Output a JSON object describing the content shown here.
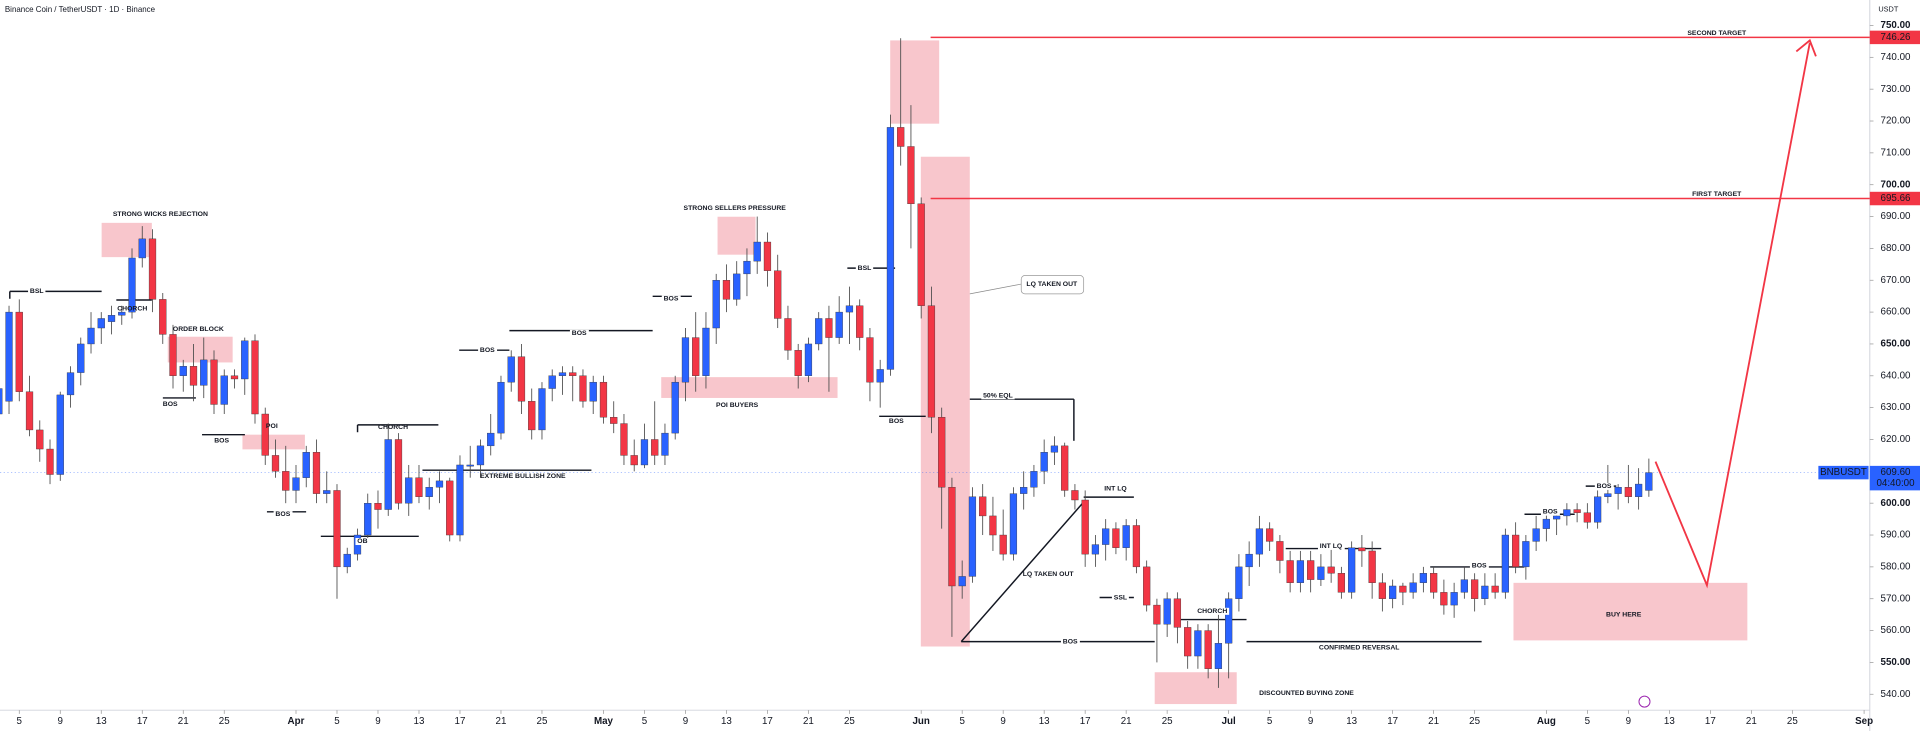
{
  "chart_data": {
    "type": "candlestick",
    "title": "Binance Coin / TetherUSDT · 1D · Binance",
    "currency": "USDT",
    "up_color": "#2962ff",
    "down_color": "#f23645",
    "ylim": [
      535,
      758
    ],
    "yticks": [
      {
        "value": 540,
        "label": "540.00"
      },
      {
        "value": 550,
        "label": "550.00"
      },
      {
        "value": 560,
        "label": "560.00"
      },
      {
        "value": 570,
        "label": "570.00"
      },
      {
        "value": 580,
        "label": "580.00"
      },
      {
        "value": 590,
        "label": "590.00"
      },
      {
        "value": 600,
        "label": "600.00"
      },
      {
        "value": 610,
        "label": "610.00"
      },
      {
        "value": 620,
        "label": "620.00"
      },
      {
        "value": 630,
        "label": "630.00"
      },
      {
        "value": 640,
        "label": "640.00"
      },
      {
        "value": 650,
        "label": "650.00"
      },
      {
        "value": 660,
        "label": "660.00"
      },
      {
        "value": 670,
        "label": "670.00"
      },
      {
        "value": 680,
        "label": "680.00"
      },
      {
        "value": 690,
        "label": "690.00"
      },
      {
        "value": 700,
        "label": "700.00"
      },
      {
        "value": 710,
        "label": "710.00"
      },
      {
        "value": 720,
        "label": "720.00"
      },
      {
        "value": 730,
        "label": "730.00"
      },
      {
        "value": 740,
        "label": "740.00"
      },
      {
        "value": 750,
        "label": "750.00"
      }
    ],
    "xticks": [
      {
        "value": "03-05",
        "label": "5"
      },
      {
        "value": "03-09",
        "label": "9"
      },
      {
        "value": "03-13",
        "label": "13"
      },
      {
        "value": "03-17",
        "label": "17"
      },
      {
        "value": "03-21",
        "label": "21"
      },
      {
        "value": "03-25",
        "label": "25"
      },
      {
        "value": "04-01",
        "label": "Apr"
      },
      {
        "value": "04-05",
        "label": "5"
      },
      {
        "value": "04-09",
        "label": "9"
      },
      {
        "value": "04-13",
        "label": "13"
      },
      {
        "value": "04-17",
        "label": "17"
      },
      {
        "value": "04-21",
        "label": "21"
      },
      {
        "value": "04-25",
        "label": "25"
      },
      {
        "value": "05-01",
        "label": "May"
      },
      {
        "value": "05-05",
        "label": "5"
      },
      {
        "value": "05-09",
        "label": "9"
      },
      {
        "value": "05-13",
        "label": "13"
      },
      {
        "value": "05-17",
        "label": "17"
      },
      {
        "value": "05-21",
        "label": "21"
      },
      {
        "value": "05-25",
        "label": "25"
      },
      {
        "value": "06-01",
        "label": "Jun"
      },
      {
        "value": "06-05",
        "label": "5"
      },
      {
        "value": "06-09",
        "label": "9"
      },
      {
        "value": "06-13",
        "label": "13"
      },
      {
        "value": "06-17",
        "label": "17"
      },
      {
        "value": "06-21",
        "label": "21"
      },
      {
        "value": "06-25",
        "label": "25"
      },
      {
        "value": "07-01",
        "label": "Jul"
      },
      {
        "value": "07-05",
        "label": "5"
      },
      {
        "value": "07-09",
        "label": "9"
      },
      {
        "value": "07-13",
        "label": "13"
      },
      {
        "value": "07-17",
        "label": "17"
      },
      {
        "value": "07-21",
        "label": "21"
      },
      {
        "value": "07-25",
        "label": "25"
      },
      {
        "value": "08-01",
        "label": "Aug"
      },
      {
        "value": "08-05",
        "label": "5"
      },
      {
        "value": "08-09",
        "label": "9"
      },
      {
        "value": "08-13",
        "label": "13"
      },
      {
        "value": "08-17",
        "label": "17"
      },
      {
        "value": "08-21",
        "label": "21"
      },
      {
        "value": "08-25",
        "label": "25"
      },
      {
        "value": "09-01",
        "label": "Sep"
      }
    ],
    "x": [
      "03-03",
      "03-04",
      "03-05",
      "03-06",
      "03-07",
      "03-08",
      "03-09",
      "03-10",
      "03-11",
      "03-12",
      "03-13",
      "03-14",
      "03-15",
      "03-16",
      "03-17",
      "03-18",
      "03-19",
      "03-20",
      "03-21",
      "03-22",
      "03-23",
      "03-24",
      "03-25",
      "03-26",
      "03-27",
      "03-28",
      "03-29",
      "03-30",
      "03-31",
      "04-01",
      "04-02",
      "04-03",
      "04-04",
      "04-05",
      "04-06",
      "04-07",
      "04-08",
      "04-09",
      "04-10",
      "04-11",
      "04-12",
      "04-13",
      "04-14",
      "04-15",
      "04-16",
      "04-17",
      "04-18",
      "04-19",
      "04-20",
      "04-21",
      "04-22",
      "04-23",
      "04-24",
      "04-25",
      "04-26",
      "04-27",
      "04-28",
      "04-29",
      "04-30",
      "05-01",
      "05-02",
      "05-03",
      "05-04",
      "05-05",
      "05-06",
      "05-07",
      "05-08",
      "05-09",
      "05-10",
      "05-11",
      "05-12",
      "05-13",
      "05-14",
      "05-15",
      "05-16",
      "05-17",
      "05-18",
      "05-19",
      "05-20",
      "05-21",
      "05-22",
      "05-23",
      "05-24",
      "05-25",
      "05-26",
      "05-27",
      "05-28",
      "05-29",
      "05-30",
      "05-31",
      "06-01",
      "06-02",
      "06-03",
      "06-04",
      "06-05",
      "06-06",
      "06-07",
      "06-08",
      "06-09",
      "06-10",
      "06-11",
      "06-12",
      "06-13",
      "06-14",
      "06-15",
      "06-16",
      "06-17",
      "06-18",
      "06-19",
      "06-20",
      "06-21",
      "06-22",
      "06-23",
      "06-24",
      "06-25",
      "06-26",
      "06-27",
      "06-28",
      "06-29",
      "06-30",
      "07-01",
      "07-02",
      "07-03",
      "07-04",
      "07-05",
      "07-06",
      "07-07",
      "07-08",
      "07-09",
      "07-10",
      "07-11",
      "07-12",
      "07-13",
      "07-14",
      "07-15",
      "07-16",
      "07-17",
      "07-18",
      "07-19",
      "07-20",
      "07-21",
      "07-22",
      "07-23",
      "07-24",
      "07-25",
      "07-26",
      "07-27",
      "07-28",
      "07-29",
      "07-30",
      "07-31",
      "08-01",
      "08-02",
      "08-03",
      "08-04",
      "08-05",
      "08-06",
      "08-07",
      "08-08",
      "08-09",
      "08-10",
      "08-11"
    ],
    "ohlc": [
      [
        628,
        642,
        625,
        636
      ],
      [
        632,
        662,
        628,
        660
      ],
      [
        660,
        664,
        632,
        635
      ],
      [
        635,
        640,
        621,
        623
      ],
      [
        623,
        626,
        613,
        617
      ],
      [
        617,
        620,
        606,
        609
      ],
      [
        609,
        635,
        607,
        634
      ],
      [
        634,
        643,
        630,
        641
      ],
      [
        641,
        652,
        637,
        650
      ],
      [
        650,
        660,
        647,
        655
      ],
      [
        655,
        660,
        650,
        658
      ],
      [
        657,
        662,
        653,
        659
      ],
      [
        659,
        662,
        656,
        660
      ],
      [
        660,
        680,
        658,
        677
      ],
      [
        677,
        687,
        674,
        683
      ],
      [
        683,
        686,
        660,
        664
      ],
      [
        664,
        666,
        650,
        653
      ],
      [
        653,
        656,
        636,
        640
      ],
      [
        640,
        645,
        635,
        643
      ],
      [
        643,
        650,
        632,
        637
      ],
      [
        637,
        652,
        633,
        645
      ],
      [
        645,
        648,
        628,
        631
      ],
      [
        631,
        642,
        628,
        640
      ],
      [
        640,
        642,
        636,
        639
      ],
      [
        639,
        652,
        634,
        651
      ],
      [
        651,
        653,
        625,
        628
      ],
      [
        628,
        630,
        612,
        615
      ],
      [
        615,
        620,
        608,
        610
      ],
      [
        610,
        618,
        600,
        604
      ],
      [
        604,
        612,
        600,
        608
      ],
      [
        608,
        618,
        605,
        616
      ],
      [
        616,
        620,
        600,
        603
      ],
      [
        603,
        610,
        600,
        604
      ],
      [
        604,
        606,
        570,
        580
      ],
      [
        580,
        586,
        578,
        584
      ],
      [
        584,
        592,
        582,
        590
      ],
      [
        590,
        603,
        588,
        600
      ],
      [
        600,
        604,
        592,
        598
      ],
      [
        598,
        625,
        596,
        620
      ],
      [
        620,
        622,
        598,
        600
      ],
      [
        600,
        612,
        596,
        608
      ],
      [
        608,
        612,
        600,
        602
      ],
      [
        602,
        608,
        598,
        605
      ],
      [
        605,
        610,
        600,
        607
      ],
      [
        607,
        608,
        588,
        590
      ],
      [
        590,
        615,
        588,
        612
      ],
      [
        612,
        618,
        608,
        612
      ],
      [
        612,
        620,
        608,
        618
      ],
      [
        618,
        628,
        615,
        622
      ],
      [
        622,
        640,
        620,
        638
      ],
      [
        638,
        648,
        635,
        646
      ],
      [
        646,
        650,
        628,
        632
      ],
      [
        632,
        636,
        620,
        623
      ],
      [
        623,
        638,
        620,
        636
      ],
      [
        636,
        642,
        632,
        640
      ],
      [
        640,
        643,
        634,
        641
      ],
      [
        641,
        643,
        632,
        640
      ],
      [
        640,
        642,
        630,
        632
      ],
      [
        632,
        640,
        628,
        638
      ],
      [
        638,
        640,
        625,
        627
      ],
      [
        627,
        632,
        622,
        625
      ],
      [
        625,
        628,
        612,
        615
      ],
      [
        615,
        620,
        610,
        612
      ],
      [
        612,
        625,
        611,
        620
      ],
      [
        620,
        632,
        612,
        615
      ],
      [
        615,
        625,
        612,
        622
      ],
      [
        622,
        640,
        620,
        638
      ],
      [
        638,
        655,
        632,
        652
      ],
      [
        652,
        660,
        635,
        640
      ],
      [
        640,
        660,
        636,
        655
      ],
      [
        655,
        672,
        650,
        670
      ],
      [
        670,
        675,
        660,
        664
      ],
      [
        664,
        676,
        662,
        672
      ],
      [
        672,
        680,
        665,
        676
      ],
      [
        676,
        690,
        672,
        682
      ],
      [
        682,
        685,
        668,
        673
      ],
      [
        673,
        678,
        655,
        658
      ],
      [
        658,
        662,
        645,
        648
      ],
      [
        648,
        650,
        636,
        640
      ],
      [
        640,
        652,
        638,
        650
      ],
      [
        650,
        660,
        648,
        658
      ],
      [
        658,
        662,
        635,
        652
      ],
      [
        652,
        665,
        650,
        660
      ],
      [
        660,
        668,
        650,
        662
      ],
      [
        662,
        664,
        648,
        652
      ],
      [
        652,
        655,
        632,
        638
      ],
      [
        638,
        645,
        630,
        642
      ],
      [
        642,
        722,
        640,
        718
      ],
      [
        718,
        746,
        706,
        712
      ],
      [
        712,
        725,
        680,
        694
      ],
      [
        694,
        696,
        658,
        662
      ],
      [
        662,
        668,
        622,
        627
      ],
      [
        627,
        630,
        592,
        605
      ],
      [
        605,
        608,
        558,
        574
      ],
      [
        574,
        582,
        570,
        577
      ],
      [
        577,
        605,
        575,
        602
      ],
      [
        602,
        606,
        590,
        596
      ],
      [
        596,
        602,
        585,
        590
      ],
      [
        590,
        598,
        582,
        584
      ],
      [
        584,
        605,
        582,
        603
      ],
      [
        603,
        610,
        598,
        605
      ],
      [
        605,
        612,
        602,
        610
      ],
      [
        610,
        620,
        606,
        616
      ],
      [
        616,
        621,
        612,
        618
      ],
      [
        618,
        619,
        602,
        604
      ],
      [
        604,
        606,
        598,
        601
      ],
      [
        601,
        604,
        580,
        584
      ],
      [
        584,
        590,
        580,
        587
      ],
      [
        587,
        595,
        582,
        592
      ],
      [
        592,
        594,
        584,
        586
      ],
      [
        586,
        595,
        582,
        593
      ],
      [
        593,
        595,
        578,
        580
      ],
      [
        580,
        582,
        566,
        568
      ],
      [
        568,
        570,
        550,
        562
      ],
      [
        562,
        572,
        558,
        570
      ],
      [
        570,
        572,
        556,
        561
      ],
      [
        561,
        563,
        548,
        552
      ],
      [
        552,
        562,
        548,
        560
      ],
      [
        560,
        562,
        545,
        548
      ],
      [
        548,
        565,
        542,
        556
      ],
      [
        556,
        572,
        545,
        570
      ],
      [
        570,
        584,
        566,
        580
      ],
      [
        580,
        588,
        574,
        584
      ],
      [
        584,
        596,
        580,
        592
      ],
      [
        592,
        594,
        585,
        588
      ],
      [
        588,
        590,
        578,
        582
      ],
      [
        582,
        585,
        572,
        575
      ],
      [
        575,
        585,
        572,
        582
      ],
      [
        582,
        585,
        572,
        576
      ],
      [
        576,
        584,
        574,
        580
      ],
      [
        580,
        586,
        575,
        578
      ],
      [
        578,
        580,
        570,
        572
      ],
      [
        572,
        588,
        570,
        586
      ],
      [
        586,
        590,
        580,
        585
      ],
      [
        585,
        588,
        570,
        575
      ],
      [
        575,
        578,
        566,
        570
      ],
      [
        570,
        576,
        567,
        574
      ],
      [
        574,
        575,
        568,
        572
      ],
      [
        572,
        578,
        570,
        575
      ],
      [
        575,
        580,
        572,
        578
      ],
      [
        578,
        580,
        570,
        572
      ],
      [
        572,
        576,
        565,
        568
      ],
      [
        568,
        575,
        564,
        572
      ],
      [
        572,
        580,
        570,
        576
      ],
      [
        576,
        578,
        566,
        570
      ],
      [
        570,
        578,
        568,
        574
      ],
      [
        574,
        578,
        570,
        572
      ],
      [
        572,
        592,
        570,
        590
      ],
      [
        590,
        594,
        578,
        580
      ],
      [
        580,
        590,
        576,
        588
      ],
      [
        588,
        596,
        585,
        592
      ],
      [
        592,
        598,
        588,
        595
      ],
      [
        595,
        598,
        590,
        596
      ],
      [
        596,
        600,
        593,
        598
      ],
      [
        598,
        600,
        594,
        597
      ],
      [
        597,
        600,
        592,
        594
      ],
      [
        594,
        604,
        592,
        602
      ],
      [
        602,
        612,
        600,
        603
      ],
      [
        603,
        606,
        598,
        605
      ],
      [
        605,
        612,
        600,
        602
      ],
      [
        602,
        611,
        598,
        606
      ],
      [
        604,
        614,
        602,
        609.6
      ]
    ],
    "levels": [
      {
        "label": "SECOND TARGET",
        "value": 746.26,
        "color": "#f23645"
      },
      {
        "label": "FIRST TARGET",
        "value": 695.66,
        "color": "#f23645"
      }
    ],
    "last_price": {
      "symbol": "BNBUSDT",
      "value": 609.6,
      "label": "609.60",
      "countdown": "04:40:00",
      "color": "#2962ff"
    },
    "annotations": [
      "STRONG WICKS REJECTION",
      "BSL",
      "CHORCH",
      "ORDER BLOCK",
      "BOS",
      "BOS",
      "POI",
      "BOS",
      "OB",
      "CHORCH",
      "EXTREME BULLISH ZONE",
      "BOS",
      "BOS",
      "BOS",
      "STRONG SELLERS PRESSURE",
      "POI BUYERS",
      "BSL",
      "BOS",
      "LQ TAKEN OUT",
      "50% EQL",
      "LQ TAKEN OUT",
      "INT LQ",
      "SSL",
      "BOS",
      "CHORCH",
      "CONFIRMED REVERSAL",
      "DISCOUNTED BUYING ZONE",
      "INT LQ",
      "BOS",
      "BOS",
      "BOS",
      "BUY HERE"
    ]
  }
}
